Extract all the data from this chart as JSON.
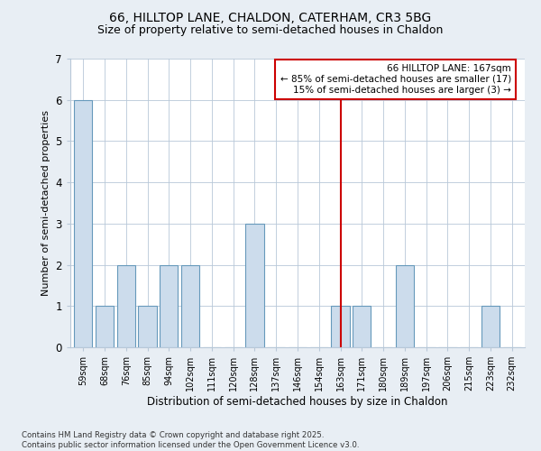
{
  "title1": "66, HILLTOP LANE, CHALDON, CATERHAM, CR3 5BG",
  "title2": "Size of property relative to semi-detached houses in Chaldon",
  "xlabel": "Distribution of semi-detached houses by size in Chaldon",
  "ylabel": "Number of semi-detached properties",
  "categories": [
    "59sqm",
    "68sqm",
    "76sqm",
    "85sqm",
    "94sqm",
    "102sqm",
    "111sqm",
    "120sqm",
    "128sqm",
    "137sqm",
    "146sqm",
    "154sqm",
    "163sqm",
    "171sqm",
    "180sqm",
    "189sqm",
    "197sqm",
    "206sqm",
    "215sqm",
    "223sqm",
    "232sqm"
  ],
  "values": [
    6,
    1,
    2,
    1,
    2,
    2,
    0,
    0,
    3,
    0,
    0,
    0,
    1,
    1,
    0,
    2,
    0,
    0,
    0,
    1,
    0
  ],
  "bar_color": "#ccdcec",
  "bar_edge_color": "#6699bb",
  "vline_x": 12,
  "vline_color": "#cc0000",
  "annotation_line1": "66 HILLTOP LANE: 167sqm",
  "annotation_line2": "← 85% of semi-detached houses are smaller (17)",
  "annotation_line3": "15% of semi-detached houses are larger (3) →",
  "ylim": [
    0,
    7
  ],
  "yticks": [
    0,
    1,
    2,
    3,
    4,
    5,
    6,
    7
  ],
  "footer": "Contains HM Land Registry data © Crown copyright and database right 2025.\nContains public sector information licensed under the Open Government Licence v3.0.",
  "bg_color": "#e8eef4",
  "plot_bg_color": "#ffffff",
  "title1_fontsize": 10,
  "title2_fontsize": 9
}
